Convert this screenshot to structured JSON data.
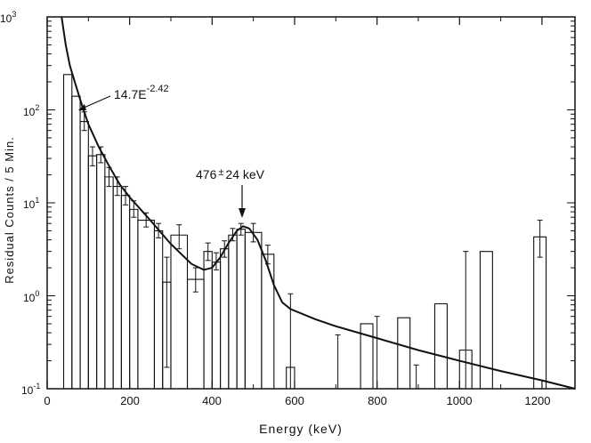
{
  "chart_data": {
    "type": "histogram",
    "xlabel": "Energy (keV)",
    "ylabel": "Residual Counts / 5 Min.",
    "xlim": [
      0,
      1280
    ],
    "ylim": [
      0.1,
      1000
    ],
    "yscale": "log",
    "x_ticks": [
      0,
      200,
      400,
      600,
      800,
      1000,
      1200
    ],
    "x_tick_labels": [
      "0",
      "200",
      "400",
      "600",
      "800",
      "1000",
      "1200"
    ],
    "y_ticks": [
      1000,
      100,
      10,
      1,
      0.1
    ],
    "y_tick_labels": [
      {
        "base": "10",
        "exp": "3"
      },
      {
        "base": "10",
        "exp": "2"
      },
      {
        "base": "10",
        "exp": "1"
      },
      {
        "base": "10",
        "exp": "0"
      },
      {
        "base": "10",
        "exp": "-1"
      }
    ],
    "bins": [
      {
        "x0": 40,
        "x1": 60,
        "y": 240,
        "lo": null,
        "hi": null
      },
      {
        "x0": 60,
        "x1": 80,
        "y": 140,
        "lo": null,
        "hi": null
      },
      {
        "x0": 80,
        "x1": 100,
        "y": 75,
        "lo": 60,
        "hi": 95
      },
      {
        "x0": 100,
        "x1": 120,
        "y": 32,
        "lo": 25,
        "hi": 40
      },
      {
        "x0": 120,
        "x1": 140,
        "y": 33,
        "lo": 27,
        "hi": 40
      },
      {
        "x0": 140,
        "x1": 160,
        "y": 19,
        "lo": 15,
        "hi": 24
      },
      {
        "x0": 160,
        "x1": 180,
        "y": 15,
        "lo": 12,
        "hi": 19
      },
      {
        "x0": 180,
        "x1": 200,
        "y": 12,
        "lo": 9.5,
        "hi": 15
      },
      {
        "x0": 200,
        "x1": 220,
        "y": 8.5,
        "lo": 7,
        "hi": 10.5
      },
      {
        "x0": 220,
        "x1": 260,
        "y": 6.5,
        "lo": 5.5,
        "hi": 7.8
      },
      {
        "x0": 260,
        "x1": 280,
        "y": 5,
        "lo": 4.2,
        "hi": 6
      },
      {
        "x0": 280,
        "x1": 300,
        "y": 1.4,
        "lo": 0.17,
        "hi": 2.6
      },
      {
        "x0": 300,
        "x1": 340,
        "y": 4.5,
        "lo": 3.2,
        "hi": 5.8
      },
      {
        "x0": 340,
        "x1": 380,
        "y": 1.5,
        "lo": 1.1,
        "hi": 2
      },
      {
        "x0": 380,
        "x1": 400,
        "y": 3,
        "lo": 2.4,
        "hi": 3.7
      },
      {
        "x0": 400,
        "x1": 420,
        "y": 2.3,
        "lo": 1.9,
        "hi": 2.9
      },
      {
        "x0": 420,
        "x1": 440,
        "y": 3.2,
        "lo": 2.6,
        "hi": 3.9
      },
      {
        "x0": 440,
        "x1": 460,
        "y": 4.5,
        "lo": 3.9,
        "hi": 5.3
      },
      {
        "x0": 460,
        "x1": 480,
        "y": 5.2,
        "lo": 4.5,
        "hi": 6
      },
      {
        "x0": 480,
        "x1": 520,
        "y": 4.8,
        "lo": 3.8,
        "hi": 6
      },
      {
        "x0": 520,
        "x1": 550,
        "y": 2.8,
        "lo": 2.2,
        "hi": 3.5
      },
      {
        "x0": 580,
        "x1": 600,
        "y": 0.17,
        "lo": 0.1,
        "hi": 1.05
      },
      {
        "x0": 700,
        "x1": 710,
        "y": null,
        "lo": 0.1,
        "hi": 0.38
      },
      {
        "x0": 760,
        "x1": 790,
        "y": 0.5,
        "lo": null,
        "hi": null
      },
      {
        "x0": 790,
        "x1": 810,
        "y": null,
        "lo": 0.1,
        "hi": 0.6
      },
      {
        "x0": 850,
        "x1": 880,
        "y": 0.58,
        "lo": null,
        "hi": null
      },
      {
        "x0": 890,
        "x1": 900,
        "y": null,
        "lo": 0.1,
        "hi": 0.18
      },
      {
        "x0": 940,
        "x1": 970,
        "y": 0.82,
        "lo": null,
        "hi": null
      },
      {
        "x0": 1000,
        "x1": 1030,
        "y": 0.26,
        "lo": 0.1,
        "hi": 3
      },
      {
        "x0": 1050,
        "x1": 1080,
        "y": 3.0,
        "lo": null,
        "hi": null
      },
      {
        "x0": 1180,
        "x1": 1210,
        "y": 4.3,
        "lo": 2.6,
        "hi": 6.5
      }
    ],
    "fit_curve": {
      "label": "14.7E",
      "label_exp": "-2.42",
      "points": [
        [
          35,
          1000
        ],
        [
          45,
          500
        ],
        [
          55,
          300
        ],
        [
          70,
          180
        ],
        [
          85,
          110
        ],
        [
          100,
          70
        ],
        [
          125,
          40
        ],
        [
          150,
          25
        ],
        [
          175,
          16
        ],
        [
          200,
          11.5
        ],
        [
          250,
          6.5
        ],
        [
          300,
          3.6
        ],
        [
          350,
          2.2
        ],
        [
          380,
          1.9
        ],
        [
          400,
          2.0
        ],
        [
          420,
          2.6
        ],
        [
          440,
          3.7
        ],
        [
          460,
          5.0
        ],
        [
          475,
          5.6
        ],
        [
          490,
          5.3
        ],
        [
          510,
          4.0
        ],
        [
          530,
          2.4
        ],
        [
          550,
          1.3
        ],
        [
          570,
          0.85
        ],
        [
          590,
          0.72
        ],
        [
          650,
          0.56
        ],
        [
          700,
          0.47
        ],
        [
          800,
          0.35
        ],
        [
          900,
          0.26
        ],
        [
          1000,
          0.2
        ],
        [
          1100,
          0.155
        ],
        [
          1200,
          0.123
        ],
        [
          1280,
          0.1
        ]
      ]
    },
    "annotations": [
      {
        "text": "476",
        "pm": "±",
        "tail": "24 keV",
        "x": 476,
        "y": 5.8
      }
    ]
  }
}
